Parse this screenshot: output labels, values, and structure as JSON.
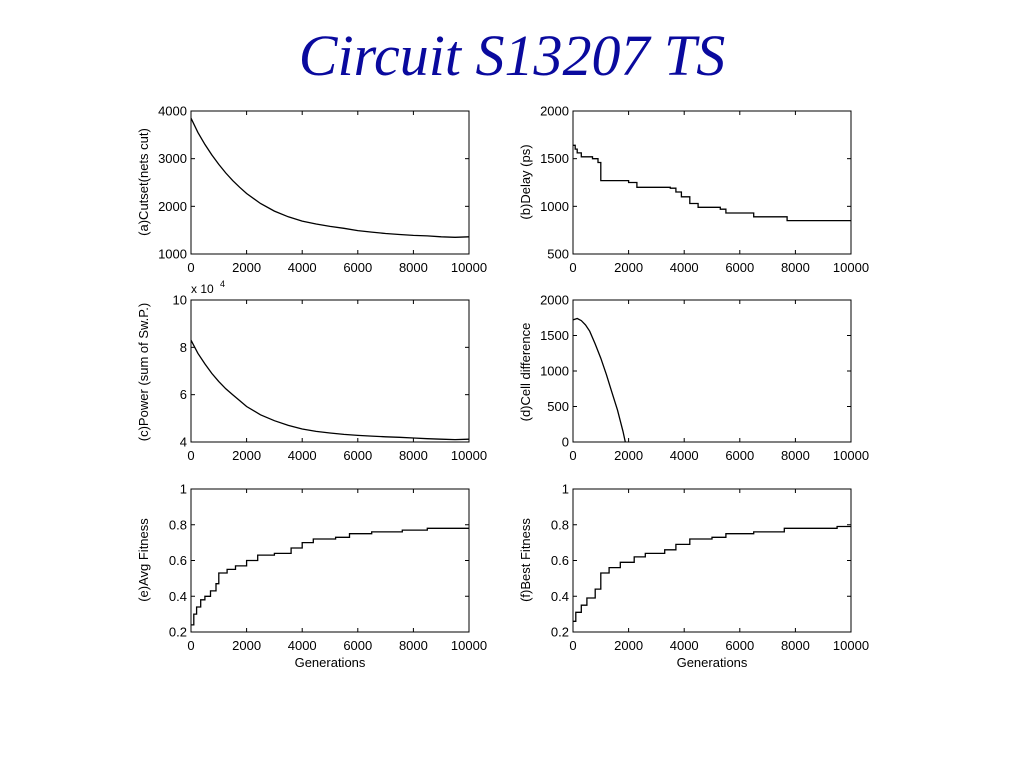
{
  "slide": {
    "title": "Circuit S13207 TS"
  },
  "chart_data": [
    {
      "type": "line",
      "ylabel": "(a)Cutset(nets cut)",
      "xlabel": "",
      "xlim": [
        0,
        10000
      ],
      "ylim": [
        1000,
        4000
      ],
      "xticks": [
        0,
        2000,
        4000,
        6000,
        8000,
        10000
      ],
      "yticks": [
        1000,
        2000,
        3000,
        4000
      ],
      "step": false,
      "series": [
        {
          "values": [
            [
              0,
              3850
            ],
            [
              250,
              3550
            ],
            [
              500,
              3300
            ],
            [
              750,
              3080
            ],
            [
              1000,
              2880
            ],
            [
              1250,
              2700
            ],
            [
              1500,
              2540
            ],
            [
              1750,
              2400
            ],
            [
              2000,
              2270
            ],
            [
              2500,
              2060
            ],
            [
              3000,
              1900
            ],
            [
              3500,
              1780
            ],
            [
              4000,
              1690
            ],
            [
              4500,
              1630
            ],
            [
              5000,
              1580
            ],
            [
              5500,
              1540
            ],
            [
              6000,
              1490
            ],
            [
              6500,
              1460
            ],
            [
              7000,
              1430
            ],
            [
              7500,
              1410
            ],
            [
              8000,
              1390
            ],
            [
              8500,
              1380
            ],
            [
              9000,
              1360
            ],
            [
              9500,
              1350
            ],
            [
              10000,
              1360
            ]
          ]
        }
      ]
    },
    {
      "type": "line",
      "ylabel": "(b)Delay (ps)",
      "xlabel": "",
      "xlim": [
        0,
        10000
      ],
      "ylim": [
        500,
        2000
      ],
      "xticks": [
        0,
        2000,
        4000,
        6000,
        8000,
        10000
      ],
      "yticks": [
        500,
        1000,
        1500,
        2000
      ],
      "step": true,
      "series": [
        {
          "values": [
            [
              0,
              1640
            ],
            [
              80,
              1600
            ],
            [
              150,
              1560
            ],
            [
              300,
              1520
            ],
            [
              700,
              1500
            ],
            [
              900,
              1460
            ],
            [
              1000,
              1270
            ],
            [
              2000,
              1250
            ],
            [
              2300,
              1200
            ],
            [
              3500,
              1190
            ],
            [
              3700,
              1150
            ],
            [
              3900,
              1100
            ],
            [
              4200,
              1030
            ],
            [
              4500,
              990
            ],
            [
              5300,
              970
            ],
            [
              5500,
              930
            ],
            [
              6500,
              890
            ],
            [
              7700,
              850
            ],
            [
              10000,
              850
            ]
          ]
        }
      ]
    },
    {
      "type": "line",
      "ylabel": "(c)Power (sum of Sw.P.)",
      "xlabel": "",
      "multiplier": "x 10",
      "multiplier_exp": "4",
      "xlim": [
        0,
        10000
      ],
      "ylim": [
        4,
        10
      ],
      "xticks": [
        0,
        2000,
        4000,
        6000,
        8000,
        10000
      ],
      "yticks": [
        4,
        6,
        8,
        10
      ],
      "step": false,
      "series": [
        {
          "values": [
            [
              0,
              8.3
            ],
            [
              250,
              7.75
            ],
            [
              500,
              7.3
            ],
            [
              750,
              6.9
            ],
            [
              1000,
              6.55
            ],
            [
              1250,
              6.25
            ],
            [
              1500,
              6.0
            ],
            [
              1750,
              5.75
            ],
            [
              2000,
              5.5
            ],
            [
              2500,
              5.15
            ],
            [
              3000,
              4.9
            ],
            [
              3500,
              4.7
            ],
            [
              4000,
              4.55
            ],
            [
              4500,
              4.45
            ],
            [
              5000,
              4.38
            ],
            [
              5500,
              4.32
            ],
            [
              6000,
              4.28
            ],
            [
              6500,
              4.25
            ],
            [
              7000,
              4.22
            ],
            [
              7500,
              4.2
            ],
            [
              8000,
              4.17
            ],
            [
              8500,
              4.14
            ],
            [
              9000,
              4.12
            ],
            [
              9500,
              4.1
            ],
            [
              10000,
              4.12
            ]
          ]
        }
      ]
    },
    {
      "type": "line",
      "ylabel": "(d)Cell difference",
      "xlabel": "",
      "xlim": [
        0,
        10000
      ],
      "ylim": [
        0,
        2000
      ],
      "xticks": [
        0,
        2000,
        4000,
        6000,
        8000,
        10000
      ],
      "yticks": [
        0,
        500,
        1000,
        1500,
        2000
      ],
      "step": false,
      "series": [
        {
          "values": [
            [
              0,
              1720
            ],
            [
              150,
              1740
            ],
            [
              300,
              1710
            ],
            [
              450,
              1650
            ],
            [
              600,
              1560
            ],
            [
              800,
              1380
            ],
            [
              1000,
              1180
            ],
            [
              1200,
              950
            ],
            [
              1400,
              700
            ],
            [
              1600,
              450
            ],
            [
              1800,
              150
            ],
            [
              1880,
              0
            ]
          ]
        }
      ]
    },
    {
      "type": "line",
      "ylabel": "(e)Avg Fitness",
      "xlabel": "Generations",
      "xlim": [
        0,
        10000
      ],
      "ylim": [
        0.2,
        1
      ],
      "xticks": [
        0,
        2000,
        4000,
        6000,
        8000,
        10000
      ],
      "yticks": [
        0.2,
        0.4,
        0.6,
        0.8,
        1
      ],
      "ytick_labels": [
        "0.2",
        "0.4",
        "0.6",
        "0.8",
        "1"
      ],
      "step": true,
      "series": [
        {
          "values": [
            [
              0,
              0.24
            ],
            [
              100,
              0.3
            ],
            [
              200,
              0.34
            ],
            [
              350,
              0.38
            ],
            [
              500,
              0.4
            ],
            [
              700,
              0.43
            ],
            [
              900,
              0.47
            ],
            [
              1000,
              0.53
            ],
            [
              1300,
              0.55
            ],
            [
              1600,
              0.57
            ],
            [
              2000,
              0.6
            ],
            [
              2400,
              0.63
            ],
            [
              3000,
              0.64
            ],
            [
              3600,
              0.67
            ],
            [
              4000,
              0.7
            ],
            [
              4400,
              0.72
            ],
            [
              5200,
              0.73
            ],
            [
              5700,
              0.75
            ],
            [
              6500,
              0.76
            ],
            [
              7600,
              0.77
            ],
            [
              8500,
              0.78
            ],
            [
              10000,
              0.78
            ]
          ]
        }
      ]
    },
    {
      "type": "line",
      "ylabel": "(f)Best Fitness",
      "xlabel": "Generations",
      "xlim": [
        0,
        10000
      ],
      "ylim": [
        0.2,
        1
      ],
      "xticks": [
        0,
        2000,
        4000,
        6000,
        8000,
        10000
      ],
      "yticks": [
        0.2,
        0.4,
        0.6,
        0.8,
        1
      ],
      "ytick_labels": [
        "0.2",
        "0.4",
        "0.6",
        "0.8",
        "1"
      ],
      "step": true,
      "series": [
        {
          "values": [
            [
              0,
              0.26
            ],
            [
              100,
              0.31
            ],
            [
              300,
              0.35
            ],
            [
              500,
              0.39
            ],
            [
              800,
              0.44
            ],
            [
              1000,
              0.53
            ],
            [
              1300,
              0.56
            ],
            [
              1700,
              0.59
            ],
            [
              2200,
              0.62
            ],
            [
              2600,
              0.64
            ],
            [
              3300,
              0.66
            ],
            [
              3700,
              0.69
            ],
            [
              4200,
              0.72
            ],
            [
              5000,
              0.73
            ],
            [
              5500,
              0.75
            ],
            [
              6500,
              0.76
            ],
            [
              7600,
              0.78
            ],
            [
              9500,
              0.79
            ],
            [
              10000,
              0.79
            ]
          ]
        }
      ]
    }
  ]
}
